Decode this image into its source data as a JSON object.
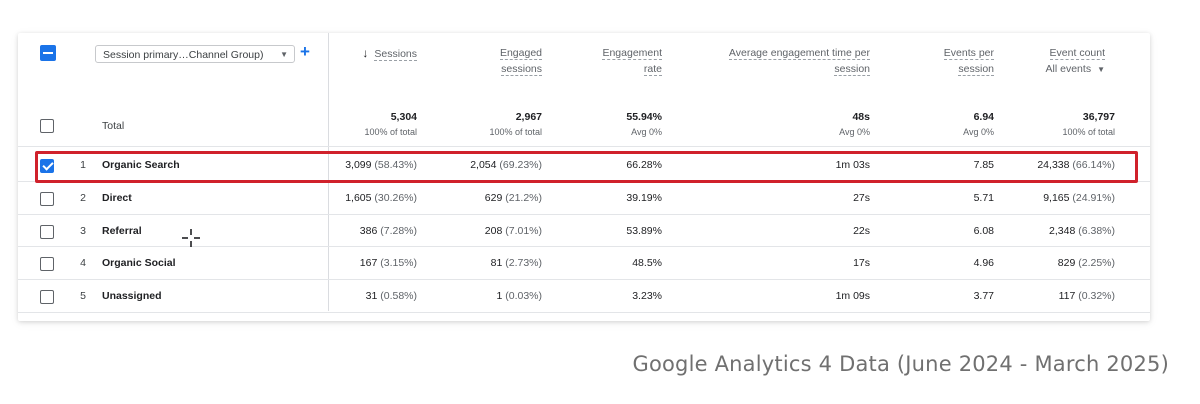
{
  "dimension_selector": {
    "value": "Session primary…Channel Group)"
  },
  "columns": [
    {
      "id": "sessions",
      "line1": "Sessions",
      "line2": "",
      "sorted": true
    },
    {
      "id": "engaged",
      "line1": "Engaged",
      "line2": "sessions"
    },
    {
      "id": "rate",
      "line1": "Engagement",
      "line2": "rate"
    },
    {
      "id": "avgtime",
      "line1": "Average engagement time per",
      "line2": "session"
    },
    {
      "id": "events_per",
      "line1": "Events per",
      "line2": "session"
    },
    {
      "id": "events",
      "line1": "Event count",
      "line2": "All events"
    }
  ],
  "total": {
    "label": "Total",
    "values": [
      "5,304",
      "2,967",
      "55.94%",
      "48s",
      "6.94",
      "36,797"
    ],
    "subs": [
      "100% of total",
      "100% of total",
      "Avg 0%",
      "Avg 0%",
      "Avg 0%",
      "100% of total"
    ]
  },
  "rows": [
    {
      "index": "1",
      "name": "Organic Search",
      "checked": true,
      "cells": [
        [
          "3,099",
          "(58.43%)"
        ],
        [
          "2,054",
          "(69.23%)"
        ],
        [
          "66.28%",
          ""
        ],
        [
          "1m 03s",
          ""
        ],
        [
          "7.85",
          ""
        ],
        [
          "24,338",
          "(66.14%)"
        ]
      ]
    },
    {
      "index": "2",
      "name": "Direct",
      "checked": false,
      "cells": [
        [
          "1,605",
          "(30.26%)"
        ],
        [
          "629",
          "(21.2%)"
        ],
        [
          "39.19%",
          ""
        ],
        [
          "27s",
          ""
        ],
        [
          "5.71",
          ""
        ],
        [
          "9,165",
          "(24.91%)"
        ]
      ]
    },
    {
      "index": "3",
      "name": "Referral",
      "checked": false,
      "cells": [
        [
          "386",
          "(7.28%)"
        ],
        [
          "208",
          "(7.01%)"
        ],
        [
          "53.89%",
          ""
        ],
        [
          "22s",
          ""
        ],
        [
          "6.08",
          ""
        ],
        [
          "2,348",
          "(6.38%)"
        ]
      ]
    },
    {
      "index": "4",
      "name": "Organic Social",
      "checked": false,
      "cells": [
        [
          "167",
          "(3.15%)"
        ],
        [
          "81",
          "(2.73%)"
        ],
        [
          "48.5%",
          ""
        ],
        [
          "17s",
          ""
        ],
        [
          "4.96",
          ""
        ],
        [
          "829",
          "(2.25%)"
        ]
      ]
    },
    {
      "index": "5",
      "name": "Unassigned",
      "checked": false,
      "cells": [
        [
          "31",
          "(0.58%)"
        ],
        [
          "1",
          "(0.03%)"
        ],
        [
          "3.23%",
          ""
        ],
        [
          "1m 09s",
          ""
        ],
        [
          "3.77",
          ""
        ],
        [
          "117",
          "(0.32%)"
        ]
      ]
    }
  ],
  "caption": "Google Analytics 4 Data (June 2024 - March 2025)",
  "colors": {
    "accent": "#1a73e8",
    "highlight": "#d0212b"
  }
}
